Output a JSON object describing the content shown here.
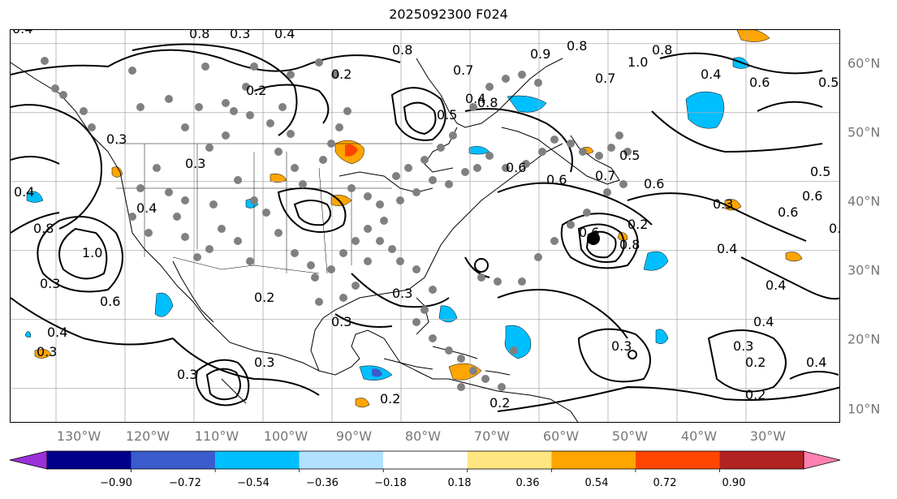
{
  "title": "2025092300 F024",
  "lon_labels": [
    {
      "text": "130°W"
    },
    {
      "text": "120°W"
    },
    {
      "text": "110°W"
    },
    {
      "text": "100°W"
    },
    {
      "text": "90°W"
    },
    {
      "text": "80°W"
    },
    {
      "text": "70°W"
    },
    {
      "text": "60°W"
    },
    {
      "text": "50°W"
    },
    {
      "text": "40°W"
    },
    {
      "text": "30°W"
    }
  ],
  "lat_labels": [
    {
      "text": "60°N"
    },
    {
      "text": "50°N"
    },
    {
      "text": "40°N"
    },
    {
      "text": "30°N"
    },
    {
      "text": "20°N"
    },
    {
      "text": "10°N"
    }
  ],
  "colorbar": {
    "ticks": [
      "−0.90",
      "−0.72",
      "−0.54",
      "−0.36",
      "−0.18",
      "0.18",
      "0.36",
      "0.54",
      "0.72",
      "0.90"
    ],
    "colors": [
      "#9b30d9",
      "#00008b",
      "#3a5bcc",
      "#00bfff",
      "#b0e2ff",
      "#ffffff",
      "#ffe680",
      "#ffa500",
      "#ff4500",
      "#b22222",
      "#ff80b0"
    ]
  },
  "contour_labels": [
    "0.2",
    "0.3",
    "0.4",
    "0.5",
    "0.6",
    "0.7",
    "0.8",
    "0.9",
    "1.0"
  ],
  "colors": {
    "contour": "#000000",
    "coast": "#000000",
    "grid": "#aaaaaa",
    "station": "#808080",
    "positive_fill": "#ffa500",
    "negative_fill": "#00bfff"
  }
}
